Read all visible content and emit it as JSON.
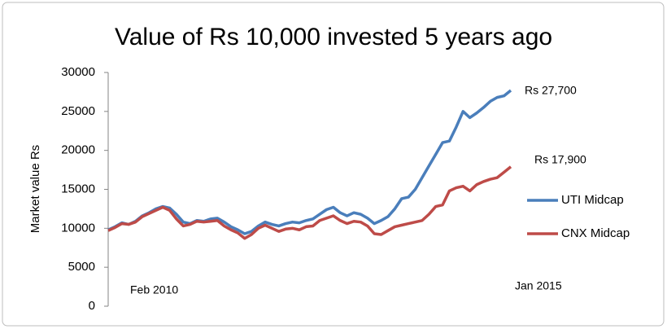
{
  "chart_data": {
    "type": "line",
    "title": "Value of Rs 10,000 invested 5 years ago",
    "y_label": "Market value Rs",
    "categories": [
      "Feb 2010",
      null,
      null,
      null,
      null,
      null,
      null,
      null,
      null,
      null,
      null,
      null,
      null,
      null,
      null,
      null,
      null,
      null,
      null,
      null,
      null,
      null,
      null,
      null,
      null,
      null,
      null,
      null,
      null,
      null,
      null,
      null,
      null,
      null,
      null,
      null,
      null,
      null,
      null,
      null,
      null,
      null,
      null,
      null,
      null,
      null,
      null,
      null,
      null,
      null,
      null,
      null,
      null,
      null,
      null,
      null,
      null,
      null,
      null,
      "Jan 2015"
    ],
    "series": [
      {
        "name": "UTI Midcap",
        "color": "#4a7ebb",
        "values": [
          9800,
          10200,
          10700,
          10500,
          10900,
          11600,
          12000,
          12500,
          12800,
          12600,
          11800,
          10800,
          10600,
          11000,
          10900,
          11200,
          11300,
          10800,
          10200,
          9800,
          9300,
          9600,
          10300,
          10800,
          10500,
          10300,
          10600,
          10800,
          10700,
          11000,
          11200,
          11800,
          12400,
          12700,
          12000,
          11600,
          12000,
          11800,
          11300,
          10600,
          11000,
          11500,
          12500,
          13800,
          14000,
          15000,
          16500,
          18000,
          19500,
          21000,
          21200,
          23000,
          25000,
          24200,
          24800,
          25500,
          26300,
          26800,
          27000,
          27700
        ]
      },
      {
        "name": "CNX Midcap",
        "color": "#be4b48",
        "values": [
          9700,
          10100,
          10600,
          10500,
          10800,
          11500,
          11900,
          12300,
          12700,
          12300,
          11200,
          10300,
          10500,
          10900,
          10800,
          10900,
          11000,
          10300,
          9800,
          9400,
          8700,
          9200,
          10000,
          10400,
          10000,
          9600,
          9900,
          10000,
          9800,
          10200,
          10300,
          11000,
          11300,
          11600,
          11000,
          10600,
          10900,
          10800,
          10300,
          9300,
          9200,
          9700,
          10200,
          10400,
          10600,
          10800,
          11000,
          11800,
          12800,
          13000,
          14800,
          15200,
          15400,
          14800,
          15600,
          16000,
          16300,
          16500,
          17200,
          17900
        ]
      }
    ],
    "annotations": [
      "Rs 27,700",
      "Rs 17,900"
    ],
    "ylim": [
      0,
      30000
    ],
    "yticks": [
      0,
      5000,
      10000,
      15000,
      20000,
      25000,
      30000
    ],
    "grid": false,
    "legend": "right"
  }
}
